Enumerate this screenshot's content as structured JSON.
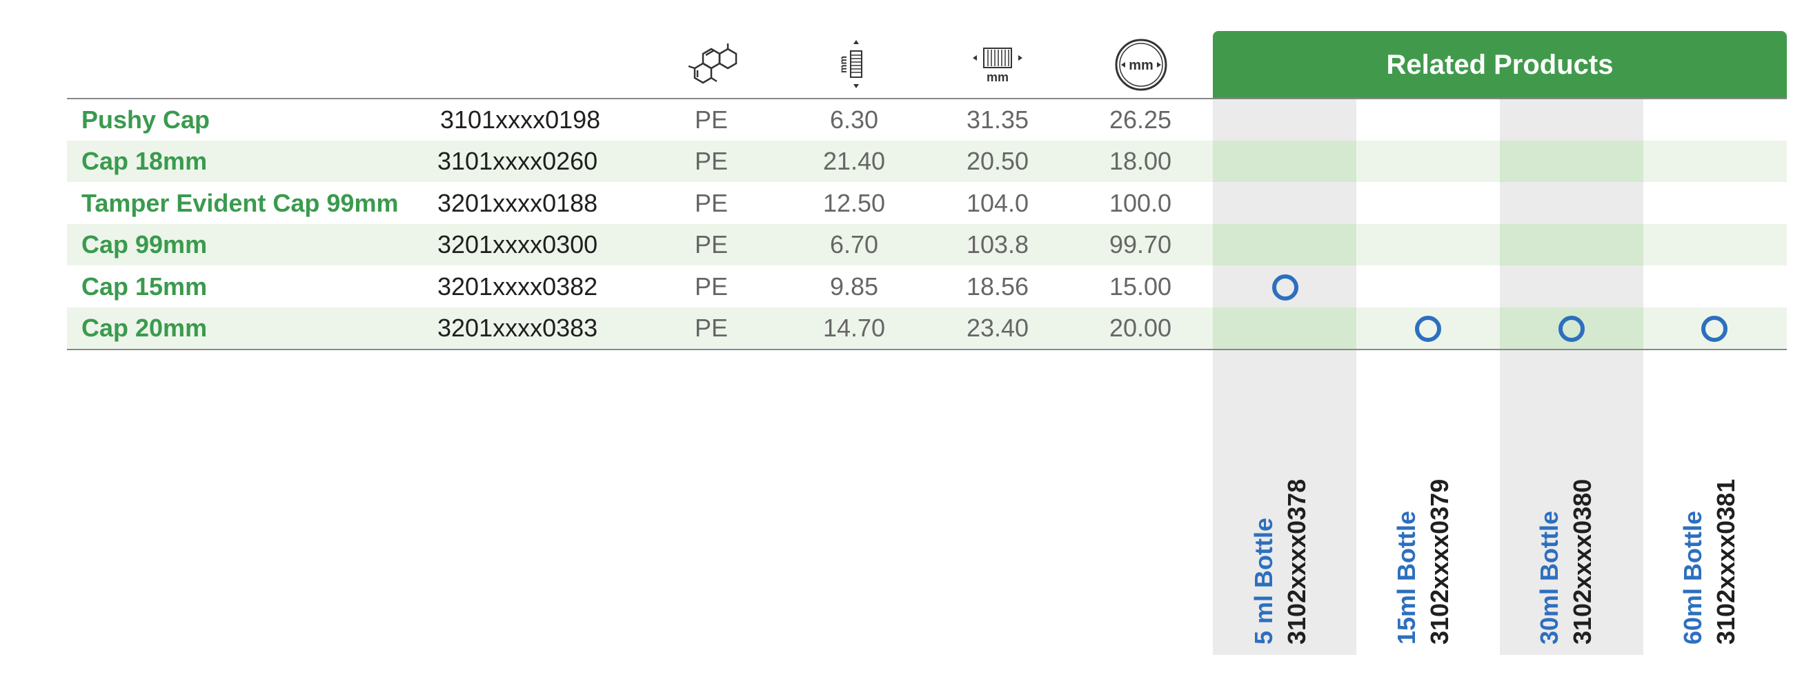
{
  "related_products_title": "Related Products",
  "header_icons": {
    "material": "molecule-icon",
    "height": "height-mm-icon",
    "width": "width-mm-icon",
    "diameter": "diameter-mm-icon"
  },
  "icon_text": {
    "mm": "mm"
  },
  "rows": [
    {
      "name": "Pushy Cap",
      "code": "3101xxxx0198",
      "material": "PE",
      "v1": "6.30",
      "v2": "31.35",
      "v3": "26.25",
      "marks": [
        false,
        false,
        false,
        false
      ]
    },
    {
      "name": "Cap 18mm",
      "code": "3101xxxx0260",
      "material": "PE",
      "v1": "21.40",
      "v2": "20.50",
      "v3": "18.00",
      "marks": [
        false,
        false,
        false,
        false
      ]
    },
    {
      "name": "Tamper Evident Cap 99mm",
      "code": "3201xxxx0188",
      "material": "PE",
      "v1": "12.50",
      "v2": "104.0",
      "v3": "100.0",
      "marks": [
        false,
        false,
        false,
        false
      ]
    },
    {
      "name": "Cap 99mm",
      "code": "3201xxxx0300",
      "material": "PE",
      "v1": "6.70",
      "v2": "103.8",
      "v3": "99.70",
      "marks": [
        false,
        false,
        false,
        false
      ]
    },
    {
      "name": "Cap 15mm",
      "code": "3201xxxx0382",
      "material": "PE",
      "v1": "9.85",
      "v2": "18.56",
      "v3": "15.00",
      "marks": [
        true,
        false,
        false,
        false
      ]
    },
    {
      "name": "Cap 20mm",
      "code": "3201xxxx0383",
      "material": "PE",
      "v1": "14.70",
      "v2": "23.40",
      "v3": "20.00",
      "marks": [
        false,
        true,
        true,
        true
      ]
    }
  ],
  "related_products": [
    {
      "name": "5 ml Bottle",
      "code": "3102xxxx0378"
    },
    {
      "name": "15ml Bottle",
      "code": "3102xxxx0379"
    },
    {
      "name": "30ml Bottle",
      "code": "3102xxxx0380"
    },
    {
      "name": "60ml Bottle",
      "code": "3102xxxx0381"
    }
  ],
  "colors": {
    "header_green": "#419a4c",
    "name_green": "#3a9a4e",
    "mark_blue": "#2d6fbf",
    "stripe_green": "#edf5ea",
    "gray_column": "#ebebeb"
  }
}
